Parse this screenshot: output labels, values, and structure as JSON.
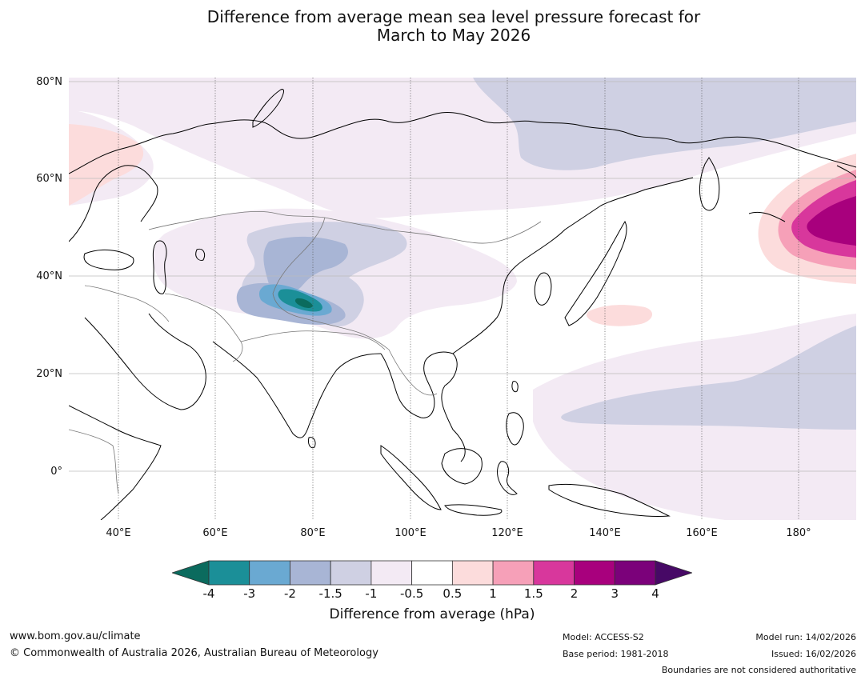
{
  "title": {
    "line1": "Difference from average mean sea level pressure forecast for",
    "line2": "March to May 2026"
  },
  "map": {
    "lat_labels": [
      "80°N",
      "60°N",
      "40°N",
      "20°N",
      "0°"
    ],
    "lon_labels": [
      "40°E",
      "60°E",
      "80°E",
      "100°E",
      "120°E",
      "140°E",
      "160°E",
      "180°"
    ],
    "extent": {
      "lon_min": 30,
      "lon_max": 191,
      "lat_min": -10,
      "lat_max": 80
    }
  },
  "colorbar": {
    "ticks": [
      "-4",
      "-3",
      "-2",
      "-1.5",
      "-1",
      "-0.5",
      "0.5",
      "1",
      "1.5",
      "2",
      "3",
      "4"
    ],
    "colors": [
      "#1b8f98",
      "#6aa9d2",
      "#a8b5d5",
      "#cfd0e3",
      "#f3eaf4",
      "#ffffff",
      "#fcdcdc",
      "#f6a0b8",
      "#d8379c",
      "#a8007d",
      "#7b017a"
    ],
    "under_color": "#0b6b5e",
    "over_color": "#470966",
    "label": "Difference from average (hPa)"
  },
  "footer": {
    "url": "www.bom.gov.au/climate",
    "copyright": "© Commonwealth of Australia 2026, Australian Bureau of Meteorology",
    "model": "Model: ACCESS-S2",
    "base_period": "Base period: 1981-2018",
    "model_run": "Model run: 14/02/2026",
    "issued": "Issued: 16/02/2026",
    "disclaimer": "Boundaries are not considered authoritative"
  }
}
